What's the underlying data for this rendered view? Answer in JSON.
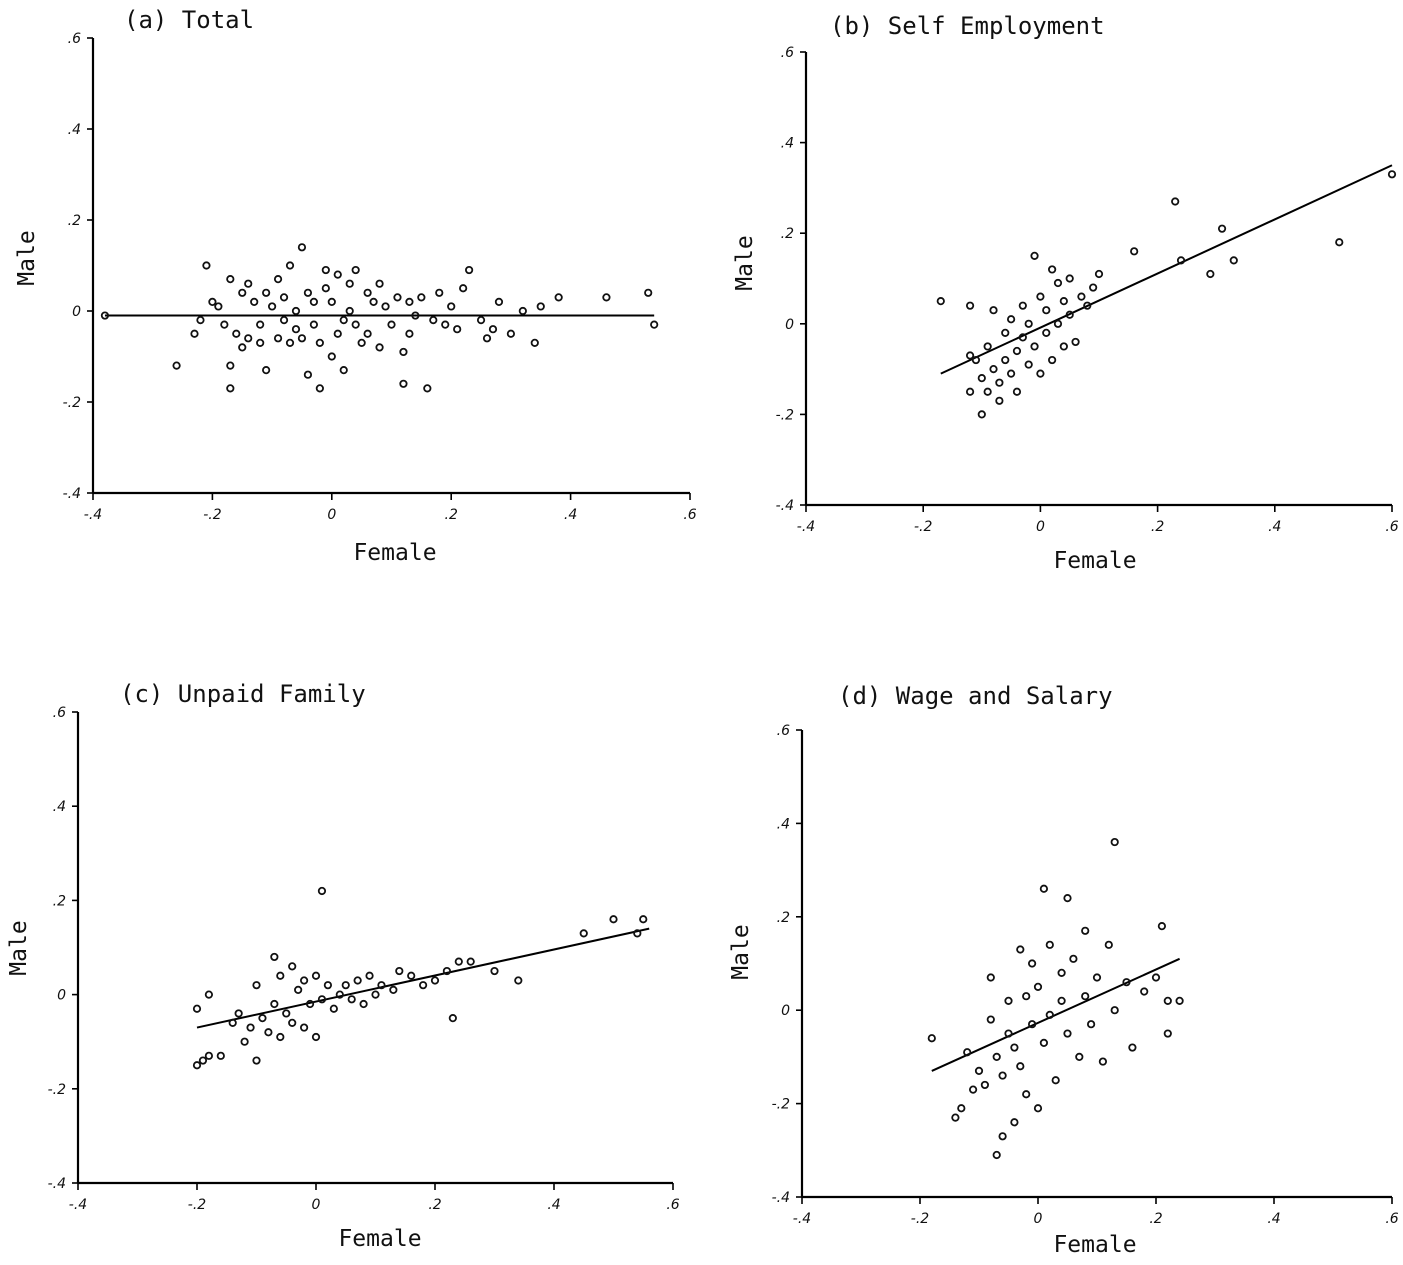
{
  "chart_data": [
    {
      "type": "scatter",
      "title": "(a) Total",
      "xlabel": "Female",
      "ylabel": "Male",
      "xlim": [
        -0.4,
        0.6
      ],
      "ylim": [
        -0.4,
        0.6
      ],
      "xticks": [
        "-.4",
        "-.2",
        "0",
        ".2",
        ".4",
        ".6"
      ],
      "yticks": [
        "-.4",
        "-.2",
        "0",
        ".2",
        ".4",
        ".6"
      ],
      "fit_line": [
        [
          -0.38,
          -0.01
        ],
        [
          0.54,
          -0.01
        ]
      ],
      "points": [
        [
          -0.38,
          -0.01
        ],
        [
          -0.26,
          -0.12
        ],
        [
          -0.23,
          -0.05
        ],
        [
          -0.22,
          -0.02
        ],
        [
          -0.21,
          0.1
        ],
        [
          -0.2,
          0.02
        ],
        [
          -0.19,
          0.01
        ],
        [
          -0.18,
          -0.03
        ],
        [
          -0.17,
          0.07
        ],
        [
          -0.17,
          -0.17
        ],
        [
          -0.17,
          -0.12
        ],
        [
          -0.16,
          -0.05
        ],
        [
          -0.15,
          -0.08
        ],
        [
          -0.15,
          0.04
        ],
        [
          -0.14,
          -0.06
        ],
        [
          -0.14,
          0.06
        ],
        [
          -0.13,
          0.02
        ],
        [
          -0.12,
          -0.03
        ],
        [
          -0.12,
          -0.07
        ],
        [
          -0.11,
          0.04
        ],
        [
          -0.11,
          -0.13
        ],
        [
          -0.1,
          0.01
        ],
        [
          -0.09,
          -0.06
        ],
        [
          -0.09,
          0.07
        ],
        [
          -0.08,
          -0.02
        ],
        [
          -0.08,
          0.03
        ],
        [
          -0.07,
          -0.07
        ],
        [
          -0.07,
          0.1
        ],
        [
          -0.06,
          0.0
        ],
        [
          -0.06,
          -0.04
        ],
        [
          -0.05,
          0.14
        ],
        [
          -0.05,
          -0.06
        ],
        [
          -0.04,
          -0.14
        ],
        [
          -0.04,
          0.04
        ],
        [
          -0.03,
          -0.03
        ],
        [
          -0.03,
          0.02
        ],
        [
          -0.02,
          -0.07
        ],
        [
          -0.02,
          -0.17
        ],
        [
          -0.01,
          0.05
        ],
        [
          -0.01,
          0.09
        ],
        [
          0.0,
          -0.1
        ],
        [
          0.0,
          0.02
        ],
        [
          0.01,
          -0.05
        ],
        [
          0.01,
          0.08
        ],
        [
          0.02,
          -0.02
        ],
        [
          0.02,
          -0.13
        ],
        [
          0.03,
          0.06
        ],
        [
          0.03,
          0.0
        ],
        [
          0.04,
          -0.03
        ],
        [
          0.04,
          0.09
        ],
        [
          0.05,
          -0.07
        ],
        [
          0.06,
          0.04
        ],
        [
          0.06,
          -0.05
        ],
        [
          0.07,
          0.02
        ],
        [
          0.08,
          -0.08
        ],
        [
          0.08,
          0.06
        ],
        [
          0.09,
          0.01
        ],
        [
          0.1,
          -0.03
        ],
        [
          0.11,
          0.03
        ],
        [
          0.12,
          -0.09
        ],
        [
          0.12,
          -0.16
        ],
        [
          0.13,
          0.02
        ],
        [
          0.13,
          -0.05
        ],
        [
          0.14,
          -0.01
        ],
        [
          0.15,
          0.03
        ],
        [
          0.16,
          -0.17
        ],
        [
          0.17,
          -0.02
        ],
        [
          0.18,
          0.04
        ],
        [
          0.19,
          -0.03
        ],
        [
          0.2,
          0.01
        ],
        [
          0.21,
          -0.04
        ],
        [
          0.22,
          0.05
        ],
        [
          0.23,
          0.09
        ],
        [
          0.25,
          -0.02
        ],
        [
          0.26,
          -0.06
        ],
        [
          0.27,
          -0.04
        ],
        [
          0.28,
          0.02
        ],
        [
          0.3,
          -0.05
        ],
        [
          0.32,
          0.0
        ],
        [
          0.34,
          -0.07
        ],
        [
          0.35,
          0.01
        ],
        [
          0.38,
          0.03
        ],
        [
          0.46,
          0.03
        ],
        [
          0.53,
          0.04
        ],
        [
          0.54,
          -0.03
        ]
      ]
    },
    {
      "type": "scatter",
      "title": "(b) Self Employment",
      "xlabel": "Female",
      "ylabel": "Male",
      "xlim": [
        -0.4,
        0.6
      ],
      "ylim": [
        -0.4,
        0.6
      ],
      "xticks": [
        "-.4",
        "-.2",
        "0",
        ".2",
        ".4",
        ".6"
      ],
      "yticks": [
        "-.4",
        "-.2",
        "0",
        ".2",
        ".4",
        ".6"
      ],
      "fit_line": [
        [
          -0.17,
          -0.11
        ],
        [
          0.6,
          0.35
        ]
      ],
      "points": [
        [
          -0.17,
          0.05
        ],
        [
          -0.12,
          0.04
        ],
        [
          -0.12,
          -0.07
        ],
        [
          -0.12,
          -0.15
        ],
        [
          -0.11,
          -0.08
        ],
        [
          -0.1,
          -0.2
        ],
        [
          -0.1,
          -0.12
        ],
        [
          -0.09,
          -0.15
        ],
        [
          -0.09,
          -0.05
        ],
        [
          -0.08,
          -0.1
        ],
        [
          -0.08,
          0.03
        ],
        [
          -0.07,
          -0.13
        ],
        [
          -0.07,
          -0.17
        ],
        [
          -0.06,
          -0.08
        ],
        [
          -0.06,
          -0.02
        ],
        [
          -0.05,
          -0.11
        ],
        [
          -0.05,
          0.01
        ],
        [
          -0.04,
          -0.06
        ],
        [
          -0.04,
          -0.15
        ],
        [
          -0.03,
          -0.03
        ],
        [
          -0.03,
          0.04
        ],
        [
          -0.02,
          -0.09
        ],
        [
          -0.02,
          0.0
        ],
        [
          -0.01,
          0.15
        ],
        [
          -0.01,
          -0.05
        ],
        [
          0.0,
          0.06
        ],
        [
          0.0,
          -0.11
        ],
        [
          0.01,
          -0.02
        ],
        [
          0.01,
          0.03
        ],
        [
          0.02,
          0.12
        ],
        [
          0.02,
          -0.08
        ],
        [
          0.03,
          0.0
        ],
        [
          0.03,
          0.09
        ],
        [
          0.04,
          -0.05
        ],
        [
          0.04,
          0.05
        ],
        [
          0.05,
          0.02
        ],
        [
          0.05,
          0.1
        ],
        [
          0.06,
          -0.04
        ],
        [
          0.07,
          0.06
        ],
        [
          0.08,
          0.04
        ],
        [
          0.09,
          0.08
        ],
        [
          0.1,
          0.11
        ],
        [
          0.16,
          0.16
        ],
        [
          0.23,
          0.27
        ],
        [
          0.24,
          0.14
        ],
        [
          0.29,
          0.11
        ],
        [
          0.31,
          0.21
        ],
        [
          0.33,
          0.14
        ],
        [
          0.51,
          0.18
        ],
        [
          0.6,
          0.33
        ]
      ]
    },
    {
      "type": "scatter",
      "title": "(c) Unpaid Family",
      "xlabel": "Female",
      "ylabel": "Male",
      "xlim": [
        -0.4,
        0.6
      ],
      "ylim": [
        -0.4,
        0.6
      ],
      "xticks": [
        "-.4",
        "-.2",
        "0",
        ".2",
        ".4",
        ".6"
      ],
      "yticks": [
        "-.4",
        "-.2",
        "0",
        ".2",
        ".4",
        ".6"
      ],
      "fit_line": [
        [
          -0.2,
          -0.07
        ],
        [
          0.56,
          0.14
        ]
      ],
      "points": [
        [
          -0.2,
          -0.03
        ],
        [
          -0.2,
          -0.15
        ],
        [
          -0.19,
          -0.14
        ],
        [
          -0.18,
          0.0
        ],
        [
          -0.18,
          -0.13
        ],
        [
          -0.16,
          -0.13
        ],
        [
          -0.14,
          -0.06
        ],
        [
          -0.13,
          -0.04
        ],
        [
          -0.12,
          -0.1
        ],
        [
          -0.11,
          -0.07
        ],
        [
          -0.1,
          0.02
        ],
        [
          -0.1,
          -0.14
        ],
        [
          -0.09,
          -0.05
        ],
        [
          -0.08,
          -0.08
        ],
        [
          -0.07,
          0.08
        ],
        [
          -0.07,
          -0.02
        ],
        [
          -0.06,
          0.04
        ],
        [
          -0.06,
          -0.09
        ],
        [
          -0.05,
          -0.04
        ],
        [
          -0.04,
          0.06
        ],
        [
          -0.04,
          -0.06
        ],
        [
          -0.03,
          0.01
        ],
        [
          -0.02,
          -0.07
        ],
        [
          -0.02,
          0.03
        ],
        [
          -0.01,
          -0.02
        ],
        [
          0.0,
          -0.09
        ],
        [
          0.0,
          0.04
        ],
        [
          0.01,
          -0.01
        ],
        [
          0.01,
          0.22
        ],
        [
          0.02,
          0.02
        ],
        [
          0.03,
          -0.03
        ],
        [
          0.04,
          0.0
        ],
        [
          0.05,
          0.02
        ],
        [
          0.06,
          -0.01
        ],
        [
          0.07,
          0.03
        ],
        [
          0.08,
          -0.02
        ],
        [
          0.09,
          0.04
        ],
        [
          0.1,
          0.0
        ],
        [
          0.11,
          0.02
        ],
        [
          0.13,
          0.01
        ],
        [
          0.14,
          0.05
        ],
        [
          0.16,
          0.04
        ],
        [
          0.18,
          0.02
        ],
        [
          0.2,
          0.03
        ],
        [
          0.22,
          0.05
        ],
        [
          0.23,
          -0.05
        ],
        [
          0.24,
          0.07
        ],
        [
          0.26,
          0.07
        ],
        [
          0.3,
          0.05
        ],
        [
          0.34,
          0.03
        ],
        [
          0.45,
          0.13
        ],
        [
          0.5,
          0.16
        ],
        [
          0.54,
          0.13
        ],
        [
          0.55,
          0.16
        ]
      ]
    },
    {
      "type": "scatter",
      "title": "(d) Wage and Salary",
      "xlabel": "Female",
      "ylabel": "Male",
      "xlim": [
        -0.4,
        0.6
      ],
      "ylim": [
        -0.4,
        0.6
      ],
      "xticks": [
        "-.4",
        "-.2",
        "0",
        ".2",
        ".4",
        ".6"
      ],
      "yticks": [
        "-.4",
        "-.2",
        "0",
        ".2",
        ".4",
        ".6"
      ],
      "fit_line": [
        [
          -0.18,
          -0.13
        ],
        [
          0.24,
          0.11
        ]
      ],
      "points": [
        [
          -0.18,
          -0.06
        ],
        [
          -0.14,
          -0.23
        ],
        [
          -0.13,
          -0.21
        ],
        [
          -0.12,
          -0.09
        ],
        [
          -0.11,
          -0.17
        ],
        [
          -0.1,
          -0.13
        ],
        [
          -0.09,
          -0.16
        ],
        [
          -0.08,
          0.07
        ],
        [
          -0.08,
          -0.02
        ],
        [
          -0.07,
          -0.31
        ],
        [
          -0.07,
          -0.1
        ],
        [
          -0.06,
          -0.27
        ],
        [
          -0.06,
          -0.14
        ],
        [
          -0.05,
          0.02
        ],
        [
          -0.05,
          -0.05
        ],
        [
          -0.04,
          -0.24
        ],
        [
          -0.04,
          -0.08
        ],
        [
          -0.03,
          0.13
        ],
        [
          -0.03,
          -0.12
        ],
        [
          -0.02,
          0.03
        ],
        [
          -0.02,
          -0.18
        ],
        [
          -0.01,
          -0.03
        ],
        [
          -0.01,
          0.1
        ],
        [
          0.0,
          -0.21
        ],
        [
          0.0,
          0.05
        ],
        [
          0.01,
          0.26
        ],
        [
          0.01,
          -0.07
        ],
        [
          0.02,
          0.14
        ],
        [
          0.02,
          -0.01
        ],
        [
          0.03,
          -0.15
        ],
        [
          0.04,
          0.08
        ],
        [
          0.04,
          0.02
        ],
        [
          0.05,
          0.24
        ],
        [
          0.05,
          -0.05
        ],
        [
          0.06,
          0.11
        ],
        [
          0.07,
          -0.1
        ],
        [
          0.08,
          0.17
        ],
        [
          0.08,
          0.03
        ],
        [
          0.09,
          -0.03
        ],
        [
          0.1,
          0.07
        ],
        [
          0.11,
          -0.11
        ],
        [
          0.12,
          0.14
        ],
        [
          0.13,
          0.0
        ],
        [
          0.13,
          0.36
        ],
        [
          0.15,
          0.06
        ],
        [
          0.16,
          -0.08
        ],
        [
          0.18,
          0.04
        ],
        [
          0.2,
          0.07
        ],
        [
          0.21,
          0.18
        ],
        [
          0.22,
          0.02
        ],
        [
          0.22,
          -0.05
        ],
        [
          0.24,
          0.02
        ]
      ]
    }
  ]
}
